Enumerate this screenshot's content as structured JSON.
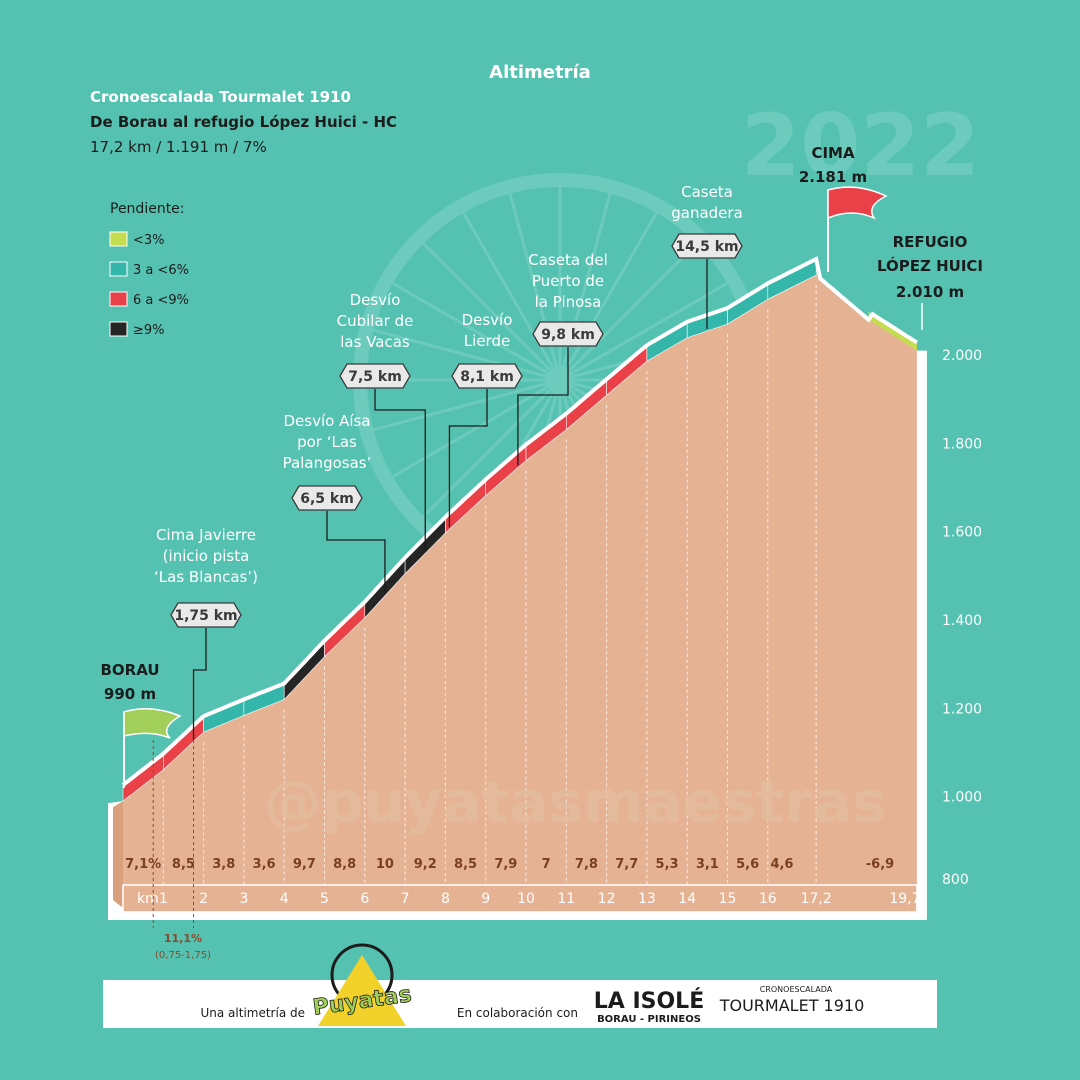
{
  "header": {
    "title": "Altimetría",
    "race": "Cronoescalada Tourmalet 1910",
    "route": "De Borau al refugio López Huici - HC",
    "stats": "17,2 km / 1.191 m / 7%",
    "year": "2022"
  },
  "legend": {
    "title": "Pendiente:",
    "items": [
      {
        "label": "<3%",
        "color": "#c5dc4e"
      },
      {
        "label": "3 a <6%",
        "color": "#35b6aa"
      },
      {
        "label": "6 a <9%",
        "color": "#ea4048"
      },
      {
        "label": "≥9%",
        "color": "#252525"
      }
    ]
  },
  "watermark": "@puyatasmaestras",
  "footer": {
    "made_by": "Una altimetría de",
    "brand": "Puyatas",
    "collab": "En colaboración con",
    "partner1": "LA ISOLÉ",
    "partner1_sub": "BORAU - PIRINEOS",
    "partner2_top": "CRONOESCALADA",
    "partner2": "TOURMALET 1910"
  },
  "labels": {
    "start_name": "BORAU",
    "start_alt": "990 m",
    "summit_name": "CIMA",
    "summit_alt": "2.181 m",
    "refugio_line1": "REFUGIO",
    "refugio_line2": "LÓPEZ HUICI",
    "refugio_alt": "2.010 m",
    "km_unit": "km",
    "special_grade": "11,1%",
    "special_range": "(0,75-1,75)"
  },
  "chart_data": {
    "type": "area",
    "title": "Altimetría",
    "xlabel": "km",
    "ylabel": "",
    "ylim": [
      800,
      2200
    ],
    "xlim": [
      0,
      19.7
    ],
    "y_ticks": [
      "800",
      "1.000",
      "1.200",
      "1.400",
      "1.600",
      "1.800",
      "2.000"
    ],
    "x_ticks": [
      "1",
      "2",
      "3",
      "4",
      "5",
      "6",
      "7",
      "8",
      "9",
      "10",
      "11",
      "12",
      "13",
      "14",
      "15",
      "16",
      "17,2",
      "19,7"
    ],
    "profile": {
      "x": [
        0,
        1,
        2,
        3,
        4,
        5,
        6,
        7,
        8,
        9,
        10,
        11,
        12,
        13,
        14,
        15,
        16,
        17.2,
        18.5,
        19.7
      ],
      "y": [
        990,
        1061,
        1146,
        1184,
        1220,
        1317,
        1405,
        1505,
        1597,
        1682,
        1761,
        1831,
        1909,
        1986,
        2039,
        2070,
        2126,
        2181,
        2080,
        2010
      ]
    },
    "segments": [
      {
        "from": 0,
        "to": 1,
        "grade": "7,1%",
        "value": 7.1
      },
      {
        "from": 1,
        "to": 2,
        "grade": "8,5",
        "value": 8.5
      },
      {
        "from": 2,
        "to": 3,
        "grade": "3,8",
        "value": 3.8
      },
      {
        "from": 3,
        "to": 4,
        "grade": "3,6",
        "value": 3.6
      },
      {
        "from": 4,
        "to": 5,
        "grade": "9,7",
        "value": 9.7
      },
      {
        "from": 5,
        "to": 6,
        "grade": "8,8",
        "value": 8.8
      },
      {
        "from": 6,
        "to": 7,
        "grade": "10",
        "value": 10
      },
      {
        "from": 7,
        "to": 8,
        "grade": "9,2",
        "value": 9.2
      },
      {
        "from": 8,
        "to": 9,
        "grade": "8,5",
        "value": 8.5
      },
      {
        "from": 9,
        "to": 10,
        "grade": "7,9",
        "value": 7.9
      },
      {
        "from": 10,
        "to": 11,
        "grade": "7",
        "value": 7
      },
      {
        "from": 11,
        "to": 12,
        "grade": "7,8",
        "value": 7.8
      },
      {
        "from": 12,
        "to": 13,
        "grade": "7,7",
        "value": 7.7
      },
      {
        "from": 13,
        "to": 14,
        "grade": "5,3",
        "value": 5.3
      },
      {
        "from": 14,
        "to": 15,
        "grade": "3,1",
        "value": 3.1
      },
      {
        "from": 15,
        "to": 16,
        "grade": "5,6",
        "value": 5.6
      },
      {
        "from": 16,
        "to": 17.2,
        "grade": "4,6",
        "value": 4.6
      },
      {
        "from": 17.2,
        "to": 19.7,
        "grade": "-6,9",
        "value": -6.9
      }
    ],
    "points_of_interest": [
      {
        "km": 1.75,
        "km_label": "1,75 km",
        "name": [
          "Cima Javierre",
          "(inicio pista",
          "‘Las Blancas’)"
        ]
      },
      {
        "km": 6.5,
        "km_label": "6,5 km",
        "name": [
          "Desvío Aísa",
          "por ‘Las",
          "Palangosas’"
        ]
      },
      {
        "km": 7.5,
        "km_label": "7,5 km",
        "name": [
          "Desvío",
          "Cubilar de",
          "las Vacas"
        ]
      },
      {
        "km": 8.1,
        "km_label": "8,1 km",
        "name": [
          "Desvío",
          "Lierde"
        ]
      },
      {
        "km": 9.8,
        "km_label": "9,8 km",
        "name": [
          "Caseta del",
          "Puerto de",
          "la Pinosa"
        ]
      },
      {
        "km": 14.5,
        "km_label": "14,5 km",
        "name": [
          "Caseta",
          "ganadera"
        ]
      }
    ],
    "legend_position": "top-left",
    "grid": true
  }
}
